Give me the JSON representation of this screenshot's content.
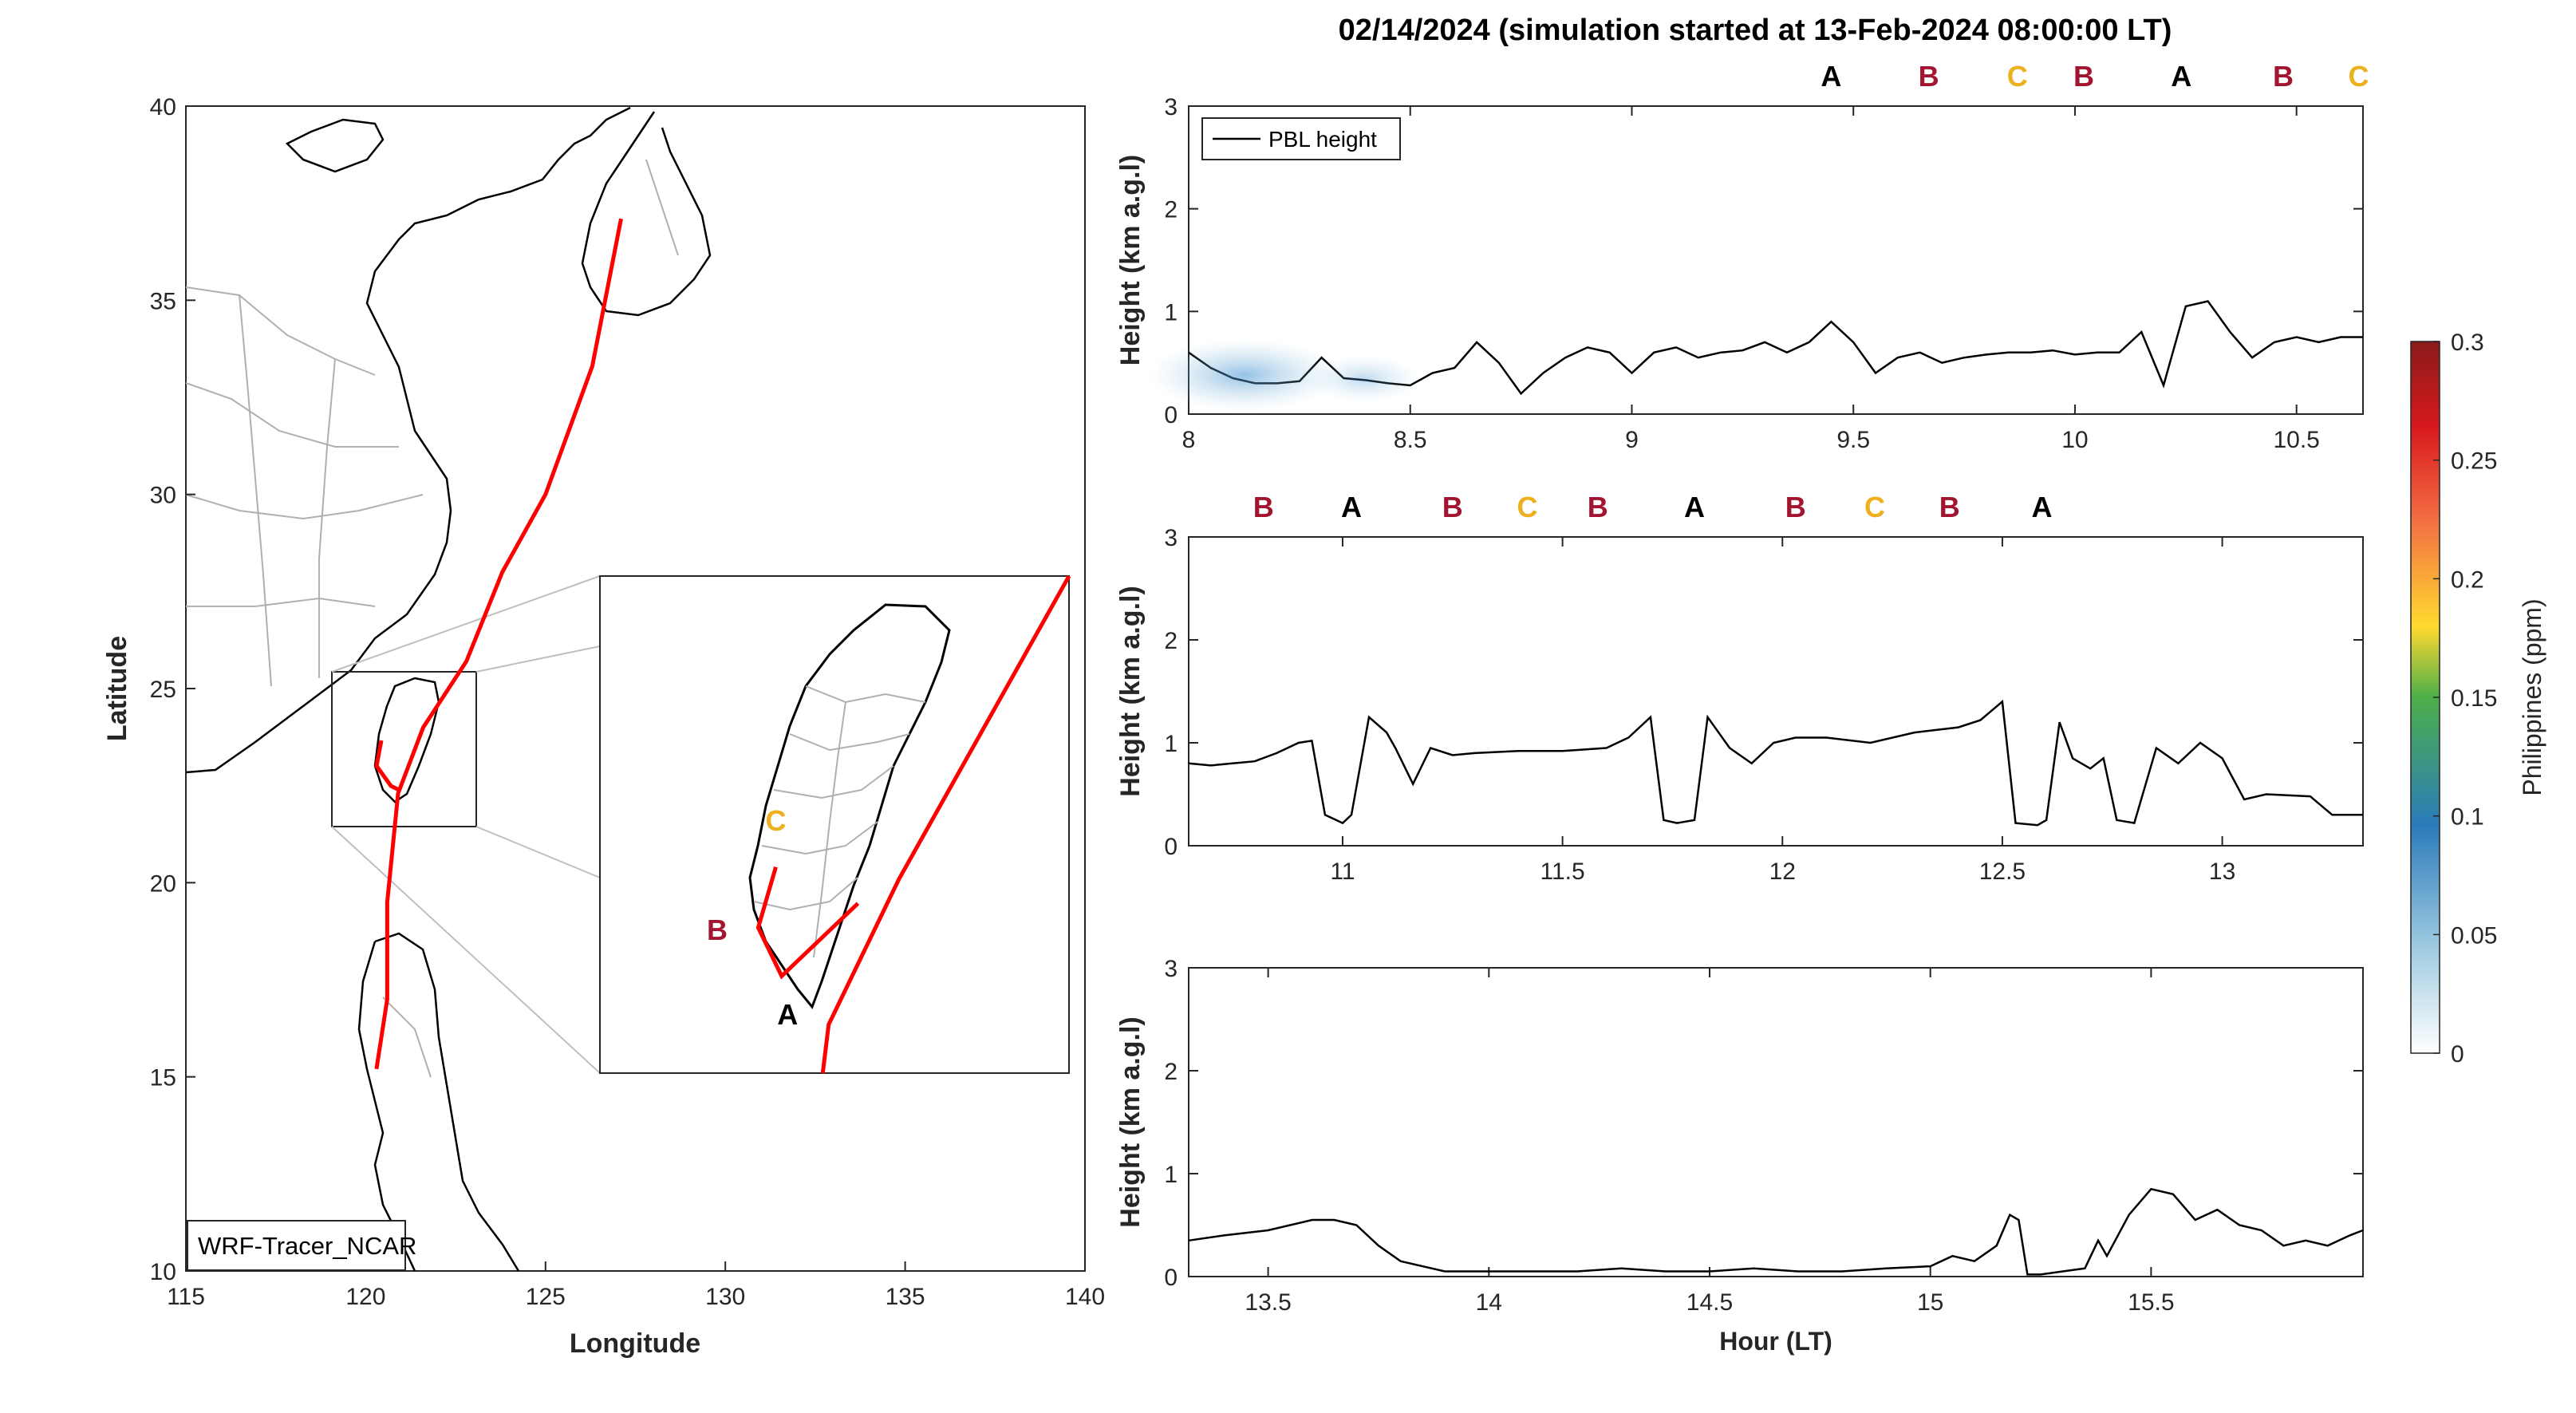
{
  "figure": {
    "title": "02/14/2024 (simulation started at 13-Feb-2024 08:00:00 LT)",
    "model_label": "WRF-Tracer_NCAR"
  },
  "colors": {
    "A": "#000000",
    "B": "#a2142f",
    "C": "#edb120",
    "track": "#ff0000",
    "coast": "#000000",
    "border": "#b0b0b0"
  },
  "map": {
    "xlabel": "Longitude",
    "ylabel": "Latitude",
    "xlim": [
      115,
      140
    ],
    "ylim": [
      10,
      40
    ],
    "xticks": [
      115,
      120,
      125,
      130,
      135,
      140
    ],
    "yticks": [
      10,
      15,
      20,
      25,
      30,
      35,
      40
    ],
    "track": [
      [
        127.1,
        37.1
      ],
      [
        126.3,
        33.3
      ],
      [
        125.0,
        30.0
      ],
      [
        123.8,
        28.0
      ],
      [
        122.8,
        25.7
      ],
      [
        121.6,
        24.0
      ],
      [
        120.9,
        22.3
      ],
      [
        120.6,
        19.5
      ],
      [
        120.6,
        17.0
      ],
      [
        120.3,
        15.2
      ]
    ],
    "inset_region": {
      "lon": [
        119.0,
        123.0
      ],
      "lat": [
        21.5,
        25.6
      ]
    },
    "inset_track_main": [
      [
        123.0,
        25.6
      ],
      [
        121.55,
        23.1
      ],
      [
        120.95,
        21.9
      ],
      [
        120.9,
        21.5
      ]
    ],
    "inset_track_sub": [
      [
        121.2,
        22.9
      ],
      [
        120.55,
        22.3
      ],
      [
        120.35,
        22.7
      ],
      [
        120.5,
        23.2
      ]
    ],
    "inset_labels": [
      {
        "text": "C",
        "key": "C",
        "lon": 120.5,
        "lat": 23.5
      },
      {
        "text": "B",
        "key": "B",
        "lon": 120.0,
        "lat": 22.6
      },
      {
        "text": "A",
        "key": "A",
        "lon": 120.6,
        "lat": 21.9
      }
    ]
  },
  "chart_data": [
    {
      "type": "line",
      "xlim": [
        8.0,
        10.65
      ],
      "ylim": [
        0,
        3
      ],
      "xticks": [
        8,
        8.5,
        9,
        9.5,
        10,
        10.5
      ],
      "yticks": [
        0,
        1,
        2,
        3
      ],
      "ylabel": "Height (km a.g.l)",
      "legend": "PBL height",
      "legend_position": "top-left",
      "markers": [
        {
          "text": "A",
          "key": "A",
          "x": 9.45
        },
        {
          "text": "B",
          "key": "B",
          "x": 9.67
        },
        {
          "text": "C",
          "key": "C",
          "x": 9.87
        },
        {
          "text": "B",
          "key": "B",
          "x": 10.02
        },
        {
          "text": "A",
          "key": "A",
          "x": 10.24
        },
        {
          "text": "B",
          "key": "B",
          "x": 10.47
        },
        {
          "text": "C",
          "key": "C",
          "x": 10.64
        }
      ],
      "x": [
        8.0,
        8.05,
        8.1,
        8.15,
        8.2,
        8.25,
        8.3,
        8.35,
        8.4,
        8.45,
        8.5,
        8.55,
        8.6,
        8.65,
        8.7,
        8.75,
        8.8,
        8.85,
        8.9,
        8.95,
        9.0,
        9.05,
        9.1,
        9.15,
        9.2,
        9.25,
        9.3,
        9.35,
        9.4,
        9.45,
        9.5,
        9.55,
        9.6,
        9.65,
        9.7,
        9.75,
        9.8,
        9.85,
        9.9,
        9.95,
        10.0,
        10.05,
        10.1,
        10.15,
        10.2,
        10.25,
        10.3,
        10.35,
        10.4,
        10.45,
        10.5,
        10.55,
        10.6,
        10.65
      ],
      "y": [
        0.6,
        0.45,
        0.35,
        0.3,
        0.3,
        0.32,
        0.55,
        0.35,
        0.33,
        0.3,
        0.28,
        0.4,
        0.45,
        0.7,
        0.5,
        0.2,
        0.4,
        0.55,
        0.65,
        0.6,
        0.4,
        0.6,
        0.65,
        0.55,
        0.6,
        0.62,
        0.7,
        0.6,
        0.7,
        0.9,
        0.7,
        0.4,
        0.55,
        0.6,
        0.5,
        0.55,
        0.58,
        0.6,
        0.6,
        0.62,
        0.58,
        0.6,
        0.6,
        0.8,
        0.28,
        1.05,
        1.1,
        0.8,
        0.55,
        0.7,
        0.75,
        0.7,
        0.75,
        0.75
      ]
    },
    {
      "type": "line",
      "xlim": [
        10.65,
        13.32
      ],
      "ylim": [
        0,
        3
      ],
      "xticks": [
        11,
        11.5,
        12,
        12.5,
        13
      ],
      "yticks": [
        0,
        1,
        2,
        3
      ],
      "ylabel": "Height (km a.g.l)",
      "markers": [
        {
          "text": "B",
          "key": "B",
          "x": 10.82
        },
        {
          "text": "A",
          "key": "A",
          "x": 11.02
        },
        {
          "text": "B",
          "key": "B",
          "x": 11.25
        },
        {
          "text": "C",
          "key": "C",
          "x": 11.42
        },
        {
          "text": "B",
          "key": "B",
          "x": 11.58
        },
        {
          "text": "A",
          "key": "A",
          "x": 11.8
        },
        {
          "text": "B",
          "key": "B",
          "x": 12.03
        },
        {
          "text": "C",
          "key": "C",
          "x": 12.21
        },
        {
          "text": "B",
          "key": "B",
          "x": 12.38
        },
        {
          "text": "A",
          "key": "A",
          "x": 12.59
        }
      ],
      "x": [
        10.65,
        10.7,
        10.75,
        10.8,
        10.85,
        10.9,
        10.93,
        10.96,
        11.0,
        11.02,
        11.06,
        11.1,
        11.12,
        11.16,
        11.2,
        11.25,
        11.3,
        11.4,
        11.5,
        11.6,
        11.65,
        11.7,
        11.73,
        11.76,
        11.8,
        11.83,
        11.88,
        11.93,
        11.98,
        12.03,
        12.1,
        12.2,
        12.3,
        12.4,
        12.45,
        12.5,
        12.53,
        12.58,
        12.6,
        12.63,
        12.66,
        12.7,
        12.73,
        12.76,
        12.8,
        12.85,
        12.9,
        12.95,
        13.0,
        13.05,
        13.1,
        13.2,
        13.25,
        13.32
      ],
      "y": [
        0.8,
        0.78,
        0.8,
        0.82,
        0.9,
        1.0,
        1.02,
        0.3,
        0.22,
        0.3,
        1.25,
        1.1,
        0.95,
        0.6,
        0.95,
        0.88,
        0.9,
        0.92,
        0.92,
        0.95,
        1.05,
        1.25,
        0.25,
        0.22,
        0.25,
        1.25,
        0.95,
        0.8,
        1.0,
        1.05,
        1.05,
        1.0,
        1.1,
        1.15,
        1.22,
        1.4,
        0.22,
        0.2,
        0.25,
        1.2,
        0.85,
        0.75,
        0.85,
        0.25,
        0.22,
        0.95,
        0.8,
        1.0,
        0.85,
        0.45,
        0.5,
        0.48,
        0.3,
        0.3
      ]
    },
    {
      "type": "line",
      "xlim": [
        13.32,
        15.98
      ],
      "ylim": [
        0,
        3
      ],
      "xticks": [
        13.5,
        14,
        14.5,
        15,
        15.5
      ],
      "yticks": [
        0,
        1,
        2,
        3
      ],
      "xlabel": "Hour (LT)",
      "ylabel": "Height (km a.g.l)",
      "x": [
        13.32,
        13.4,
        13.5,
        13.6,
        13.65,
        13.7,
        13.75,
        13.8,
        13.9,
        14.0,
        14.1,
        14.2,
        14.3,
        14.4,
        14.5,
        14.6,
        14.7,
        14.8,
        14.9,
        15.0,
        15.05,
        15.1,
        15.15,
        15.18,
        15.2,
        15.22,
        15.25,
        15.3,
        15.35,
        15.38,
        15.4,
        15.45,
        15.5,
        15.55,
        15.6,
        15.65,
        15.7,
        15.75,
        15.8,
        15.85,
        15.9,
        15.95,
        15.98
      ],
      "y": [
        0.35,
        0.4,
        0.45,
        0.55,
        0.55,
        0.5,
        0.3,
        0.15,
        0.05,
        0.05,
        0.05,
        0.05,
        0.08,
        0.05,
        0.05,
        0.08,
        0.05,
        0.05,
        0.08,
        0.1,
        0.2,
        0.15,
        0.3,
        0.6,
        0.55,
        0.02,
        0.02,
        0.05,
        0.08,
        0.35,
        0.2,
        0.6,
        0.85,
        0.8,
        0.55,
        0.65,
        0.5,
        0.45,
        0.3,
        0.35,
        0.3,
        0.4,
        0.45
      ]
    }
  ],
  "colorbar": {
    "label": "Philippines (ppm)",
    "min": 0,
    "max": 0.3,
    "ticks": [
      "0",
      "0.05",
      "0.1",
      "0.15",
      "0.2",
      "0.25",
      "0.3"
    ]
  }
}
